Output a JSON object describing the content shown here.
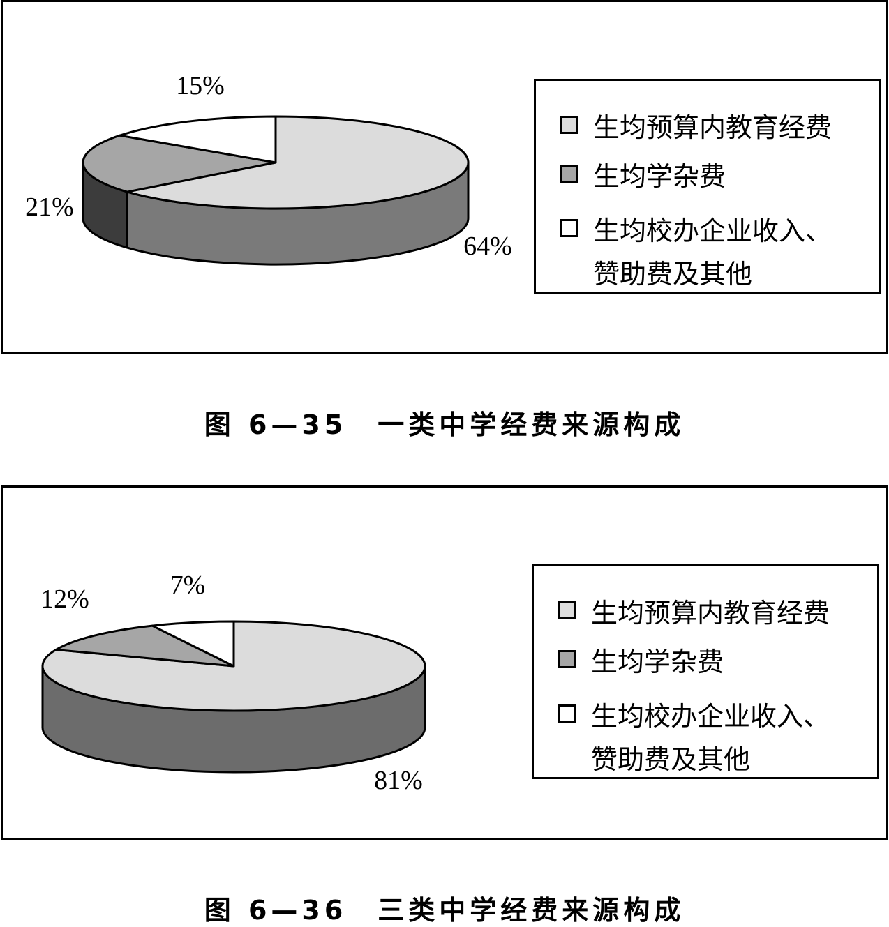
{
  "chart_data": [
    {
      "type": "pie",
      "title": "图 6—35　一类中学经费来源构成",
      "slices": [
        {
          "label": "生均预算内教育经费",
          "value": 64,
          "display": "64%",
          "color": "#dcdcdc",
          "side_color": "#7a7a7a"
        },
        {
          "label": "生均学杂费",
          "value": 21,
          "display": "21%",
          "color": "#a6a6a6",
          "side_color": "#3c3c3c"
        },
        {
          "label": "生均校办企业收入、\n赞助费及其他",
          "value": 15,
          "display": "15%",
          "color": "#ffffff",
          "side_color": "#ffffff"
        }
      ],
      "legend_position": "right"
    },
    {
      "type": "pie",
      "title": "图 6—36　三类中学经费来源构成",
      "slices": [
        {
          "label": "生均预算内教育经费",
          "value": 81,
          "display": "81%",
          "color": "#dcdcdc",
          "side_color": "#6c6c6c"
        },
        {
          "label": "生均学杂费",
          "value": 12,
          "display": "12%",
          "color": "#a6a6a6",
          "side_color": "#3c3c3c"
        },
        {
          "label": "生均校办企业收入、\n赞助费及其他",
          "value": 7,
          "display": "7%",
          "color": "#ffffff",
          "side_color": "#ffffff"
        }
      ],
      "legend_position": "right"
    }
  ],
  "legend_swatch_colors": [
    "#dcdcdc",
    "#a6a6a6",
    "#ffffff"
  ]
}
